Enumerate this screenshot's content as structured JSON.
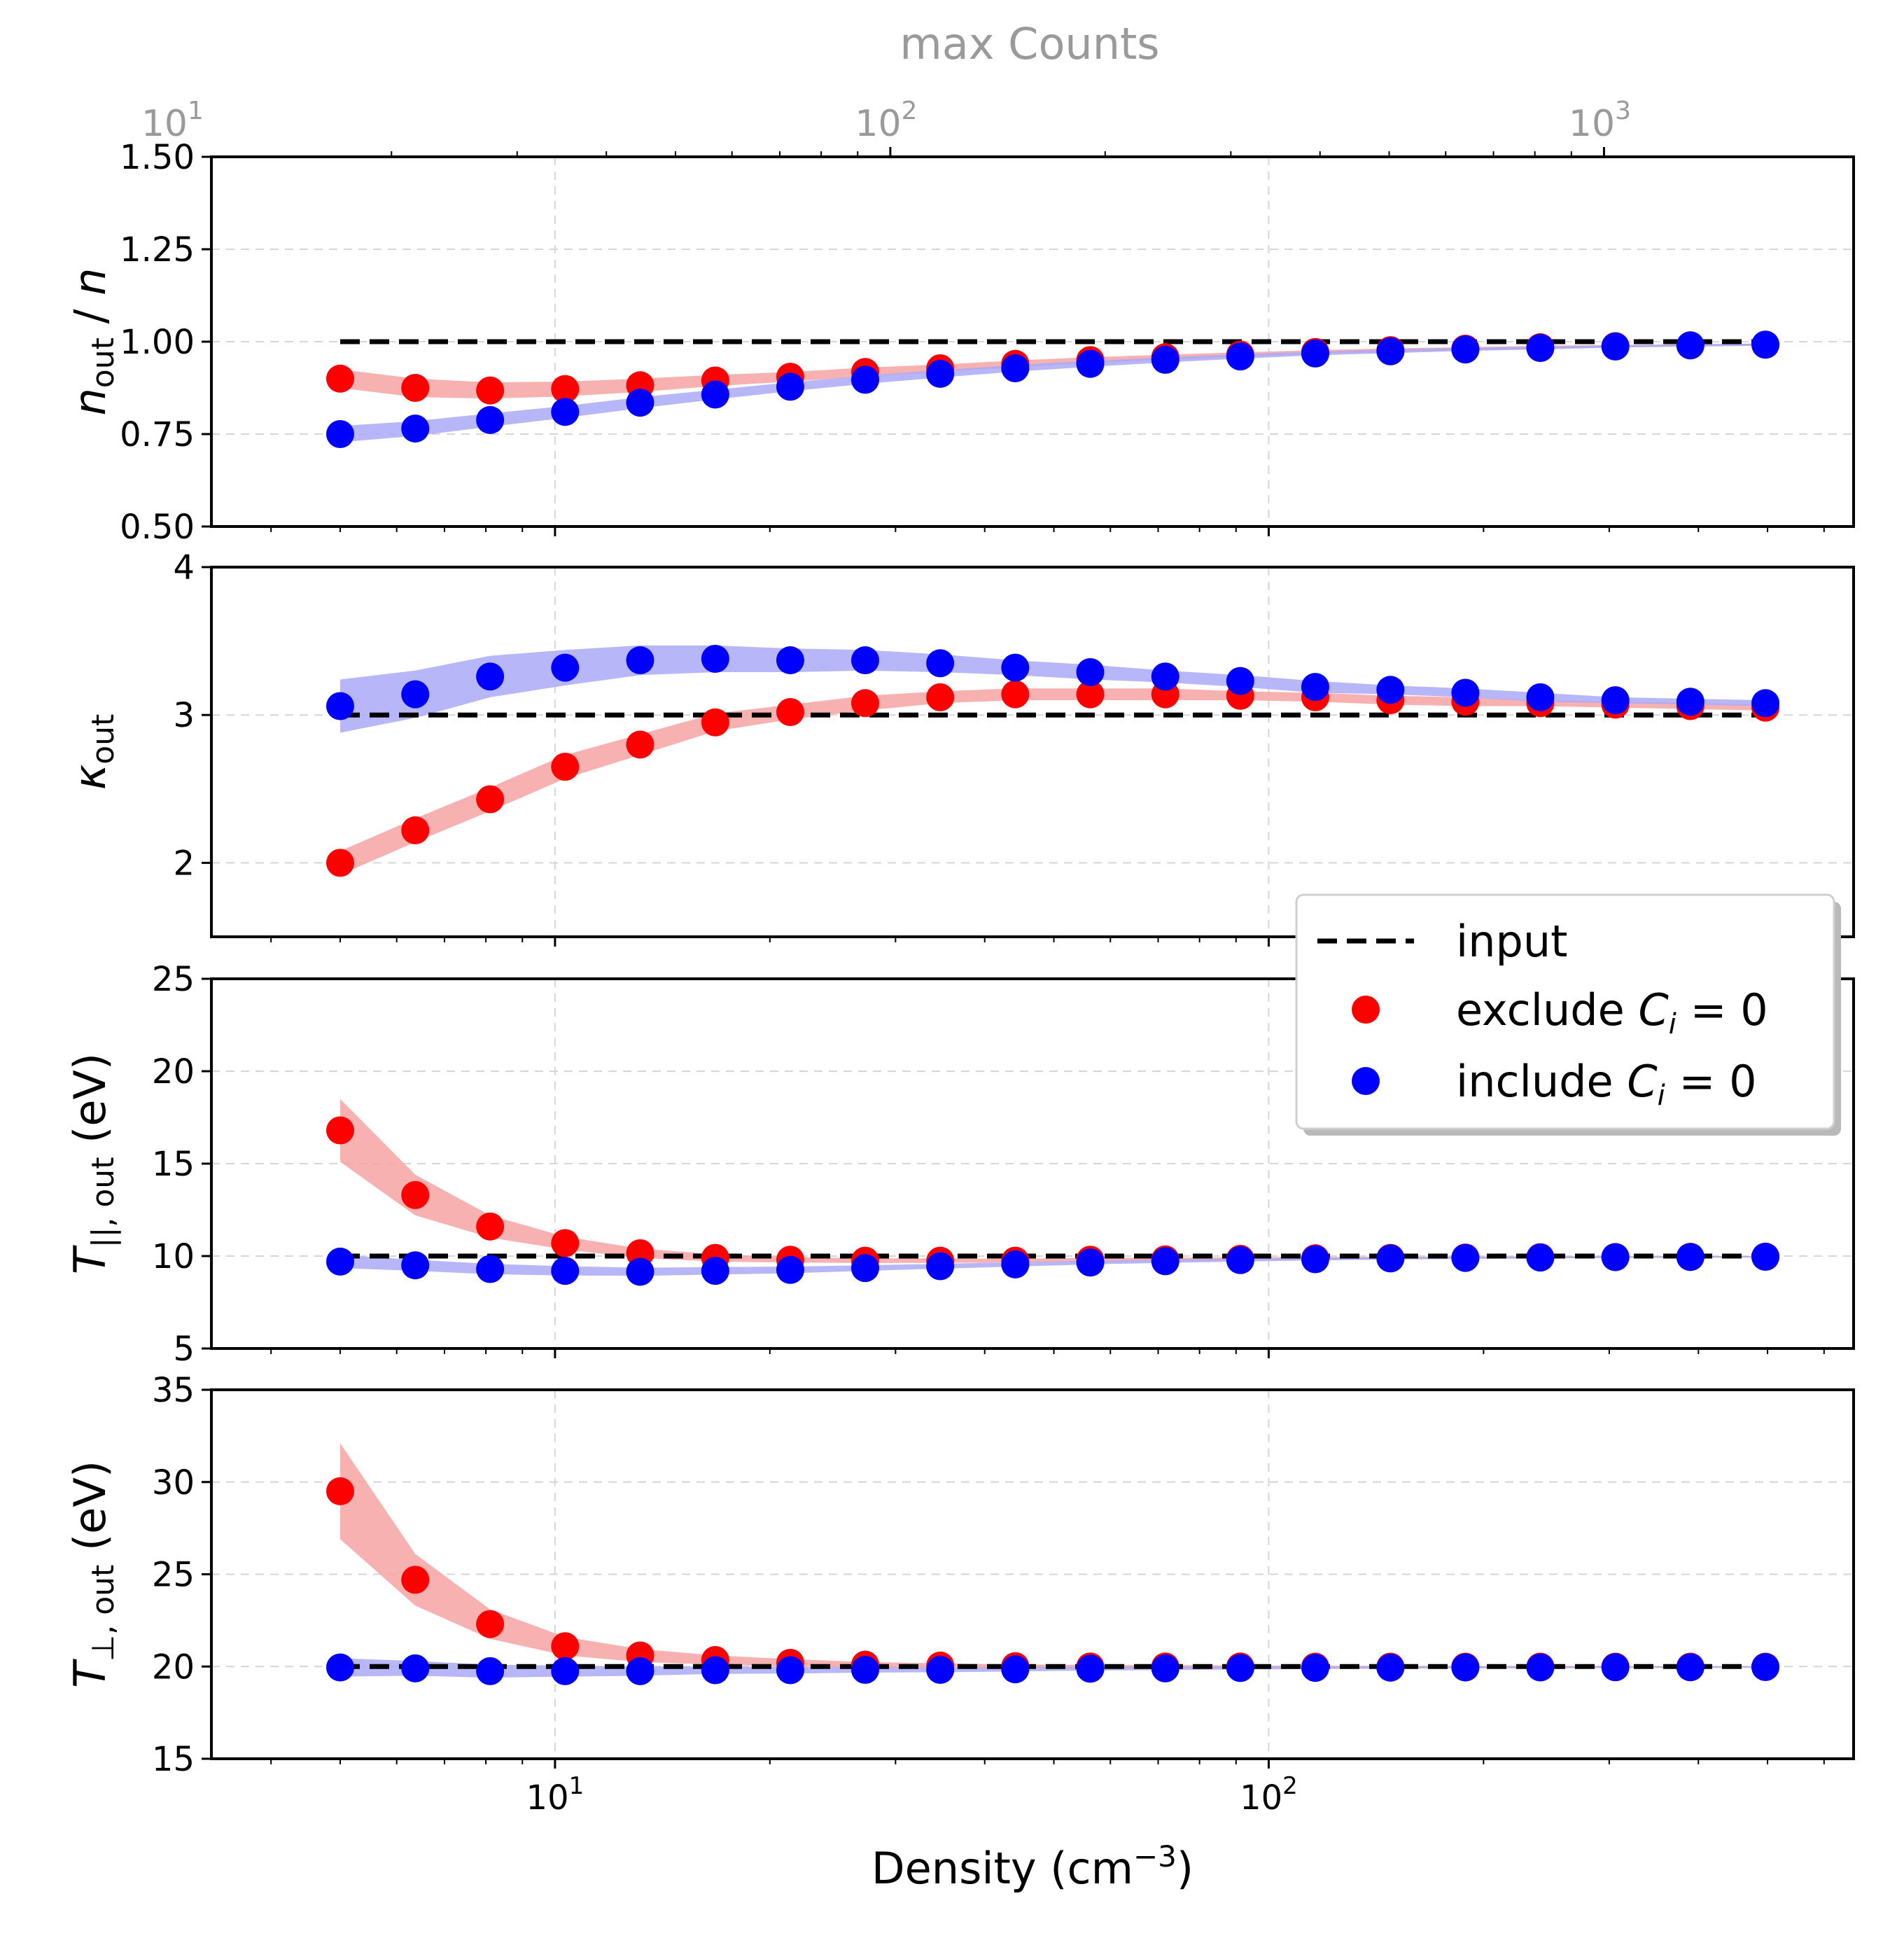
{
  "chart_data": {
    "type": "scatter",
    "x_scale": "log",
    "xlabel": "Density (cm",
    "xlabel_sup": "−3",
    "xlabel_close": ")",
    "x_ticks": [
      {
        "value": 10,
        "base": "10",
        "exp": "1"
      },
      {
        "value": 100,
        "base": "10",
        "exp": "2"
      }
    ],
    "top_axis": {
      "label": "max Counts",
      "ticks": [
        {
          "base": "10",
          "exp": "1"
        },
        {
          "base": "10",
          "exp": "2"
        },
        {
          "base": "10",
          "exp": "3"
        }
      ]
    },
    "x": [
      5.0,
      6.37,
      8.11,
      10.33,
      13.16,
      16.77,
      21.36,
      27.2,
      34.65,
      44.14,
      56.23,
      71.63,
      91.24,
      116.2,
      148.1,
      188.6,
      240.2,
      306.0,
      389.8,
      496.6
    ],
    "legend": {
      "position": "center-right",
      "input": "input",
      "exclude_prefix": "exclude ",
      "include_prefix": "include ",
      "var": "C",
      "var_sub": "i",
      "suffix": " = 0"
    },
    "colors": {
      "exclude": "#ff0000",
      "include": "#0000ff",
      "exclude_band": "#f7a3a3",
      "include_band": "#a9a9f7",
      "input": "#000000"
    },
    "panels": [
      {
        "id": "n",
        "ylabel_main": "n",
        "ylabel_sub": "out",
        "ylabel_rest": " / n",
        "ylim": [
          0.5,
          1.5
        ],
        "yticks": [
          "0.50",
          "0.75",
          "1.00",
          "1.25",
          "1.50"
        ],
        "ytick_values": [
          0.5,
          0.75,
          1.0,
          1.25,
          1.5
        ],
        "input": 1.0,
        "exclude": [
          0.9,
          0.875,
          0.868,
          0.872,
          0.882,
          0.895,
          0.905,
          0.918,
          0.928,
          0.94,
          0.95,
          0.958,
          0.965,
          0.972,
          0.977,
          0.981,
          0.985,
          0.988,
          0.99,
          0.992
        ],
        "exclude_err": [
          0.025,
          0.025,
          0.022,
          0.02,
          0.018,
          0.015,
          0.013,
          0.012,
          0.01,
          0.009,
          0.008,
          0.007,
          0.006,
          0.005,
          0.005,
          0.004,
          0.004,
          0.003,
          0.003,
          0.003
        ],
        "include": [
          0.75,
          0.765,
          0.788,
          0.81,
          0.835,
          0.857,
          0.878,
          0.897,
          0.913,
          0.928,
          0.94,
          0.951,
          0.96,
          0.968,
          0.974,
          0.979,
          0.983,
          0.987,
          0.99,
          0.992
        ],
        "include_err": [
          0.022,
          0.02,
          0.018,
          0.016,
          0.015,
          0.013,
          0.012,
          0.011,
          0.01,
          0.009,
          0.008,
          0.007,
          0.006,
          0.005,
          0.005,
          0.004,
          0.004,
          0.003,
          0.003,
          0.003
        ]
      },
      {
        "id": "kappa",
        "ylabel_main": "κ",
        "ylabel_sub": "out",
        "ylabel_rest": "",
        "ylim": [
          1.5,
          4.0
        ],
        "yticks": [
          "2",
          "3",
          "4"
        ],
        "ytick_values": [
          2,
          3,
          4
        ],
        "input": 3.0,
        "exclude": [
          2.0,
          2.22,
          2.43,
          2.65,
          2.8,
          2.95,
          3.02,
          3.08,
          3.12,
          3.14,
          3.14,
          3.14,
          3.13,
          3.12,
          3.1,
          3.09,
          3.08,
          3.07,
          3.06,
          3.05
        ],
        "exclude_err": [
          0.08,
          0.08,
          0.08,
          0.08,
          0.07,
          0.06,
          0.05,
          0.05,
          0.04,
          0.04,
          0.04,
          0.04,
          0.03,
          0.03,
          0.03,
          0.03,
          0.02,
          0.02,
          0.02,
          0.02
        ],
        "include": [
          3.06,
          3.14,
          3.26,
          3.32,
          3.37,
          3.38,
          3.37,
          3.37,
          3.35,
          3.32,
          3.29,
          3.26,
          3.23,
          3.19,
          3.17,
          3.15,
          3.12,
          3.1,
          3.09,
          3.08
        ],
        "include_err": [
          0.18,
          0.16,
          0.14,
          0.12,
          0.1,
          0.09,
          0.08,
          0.07,
          0.06,
          0.05,
          0.05,
          0.04,
          0.04,
          0.04,
          0.03,
          0.03,
          0.03,
          0.02,
          0.02,
          0.02
        ]
      },
      {
        "id": "tpar",
        "ylabel_main": "T",
        "ylabel_sub": "||, out",
        "ylabel_rest": " (eV)",
        "ylim": [
          5,
          25
        ],
        "yticks": [
          "5",
          "10",
          "15",
          "20",
          "25"
        ],
        "ytick_values": [
          5,
          10,
          15,
          20,
          25
        ],
        "input": 10.0,
        "exclude": [
          16.8,
          13.3,
          11.6,
          10.7,
          10.15,
          9.9,
          9.8,
          9.75,
          9.75,
          9.75,
          9.8,
          9.82,
          9.85,
          9.88,
          9.9,
          9.92,
          9.94,
          9.95,
          9.96,
          9.97
        ],
        "exclude_err": [
          1.7,
          1.1,
          0.6,
          0.35,
          0.25,
          0.2,
          0.15,
          0.13,
          0.12,
          0.1,
          0.1,
          0.09,
          0.08,
          0.07,
          0.06,
          0.05,
          0.05,
          0.04,
          0.04,
          0.04
        ],
        "include": [
          9.7,
          9.5,
          9.3,
          9.2,
          9.15,
          9.2,
          9.25,
          9.35,
          9.45,
          9.55,
          9.65,
          9.72,
          9.78,
          9.83,
          9.87,
          9.9,
          9.92,
          9.94,
          9.95,
          9.96
        ],
        "include_err": [
          0.35,
          0.3,
          0.28,
          0.25,
          0.22,
          0.2,
          0.18,
          0.15,
          0.13,
          0.12,
          0.1,
          0.09,
          0.08,
          0.07,
          0.06,
          0.05,
          0.05,
          0.04,
          0.04,
          0.04
        ]
      },
      {
        "id": "tperp",
        "ylabel_main": "T",
        "ylabel_sub": "⊥, out",
        "ylabel_rest": " (eV)",
        "ylim": [
          15,
          35
        ],
        "yticks": [
          "15",
          "20",
          "25",
          "30",
          "35"
        ],
        "ytick_values": [
          15,
          20,
          25,
          30,
          35
        ],
        "input": 20.0,
        "exclude": [
          29.5,
          24.7,
          22.3,
          21.1,
          20.6,
          20.35,
          20.2,
          20.1,
          20.05,
          20.02,
          20.0,
          20.0,
          20.0,
          19.99,
          19.99,
          19.99,
          19.99,
          19.99,
          19.99,
          19.99
        ],
        "exclude_err": [
          2.6,
          1.4,
          0.8,
          0.5,
          0.35,
          0.25,
          0.2,
          0.15,
          0.12,
          0.1,
          0.08,
          0.07,
          0.06,
          0.05,
          0.05,
          0.04,
          0.04,
          0.04,
          0.03,
          0.03
        ],
        "include": [
          19.95,
          19.9,
          19.75,
          19.75,
          19.75,
          19.8,
          19.8,
          19.82,
          19.82,
          19.85,
          19.88,
          19.9,
          19.92,
          19.93,
          19.94,
          19.95,
          19.95,
          19.96,
          19.96,
          19.97
        ],
        "include_err": [
          0.5,
          0.4,
          0.35,
          0.3,
          0.25,
          0.2,
          0.18,
          0.15,
          0.13,
          0.12,
          0.1,
          0.09,
          0.08,
          0.07,
          0.06,
          0.05,
          0.05,
          0.04,
          0.04,
          0.04
        ]
      }
    ]
  }
}
